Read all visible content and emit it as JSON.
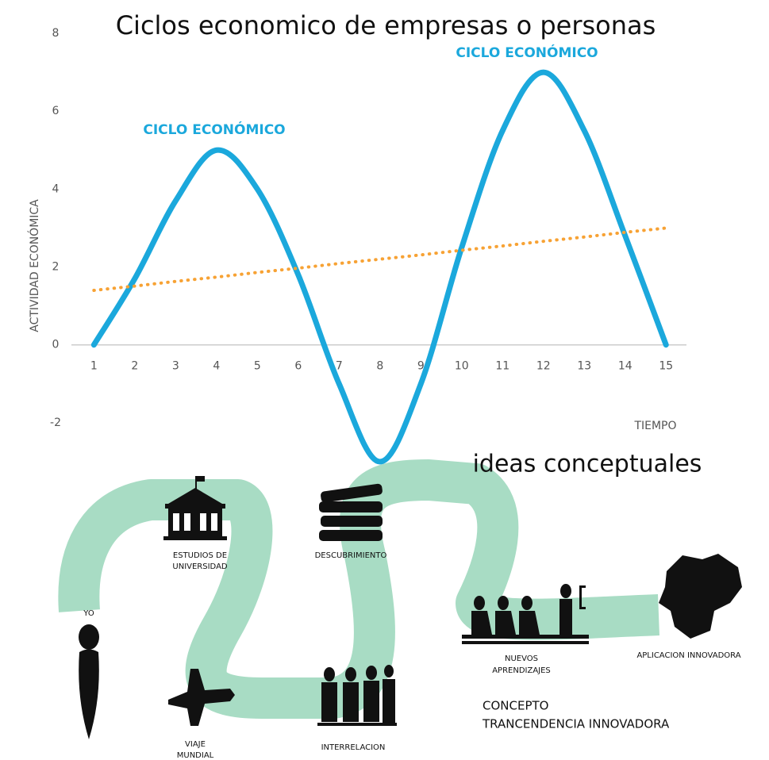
{
  "chart_data": {
    "type": "line",
    "title": "Ciclos economico de empresas o personas",
    "y_label": "ACTIVIDAD ECONÓMICA",
    "x_label": "TIEMPO",
    "annotations": [
      "CICLO ECONÓMICO",
      "CICLO ECONÓMICO"
    ],
    "x": [
      1,
      2,
      3,
      4,
      5,
      6,
      7,
      8,
      9,
      10,
      11,
      12,
      13,
      14,
      15
    ],
    "series": [
      {
        "color": "#1ba8dc",
        "values": [
          0,
          1.7,
          3.7,
          5,
          4,
          1.8,
          -1,
          -3,
          -1,
          2.5,
          5.5,
          7,
          5.5,
          2.8,
          0
        ]
      },
      {
        "color": "#f7a234",
        "values": [
          1.4,
          1.51,
          1.63,
          1.74,
          1.86,
          1.97,
          2.09,
          2.2,
          2.31,
          2.43,
          2.54,
          2.66,
          2.77,
          2.89,
          3.0
        ]
      }
    ],
    "xlim": [
      0.45,
      15.5
    ],
    "ylim": [
      -3,
      8
    ],
    "xticks": [
      1,
      2,
      3,
      4,
      5,
      6,
      7,
      8,
      9,
      10,
      11,
      12,
      13,
      14,
      15
    ],
    "yticks": [
      -2,
      0,
      2,
      4,
      6,
      8
    ]
  },
  "infographic": {
    "title": "ideas conceptuales",
    "nodes": [
      {
        "lines": [
          "ESTUDIOS DE",
          "UNIVERSIDAD"
        ]
      },
      {
        "lines": [
          "DESCUBRIMIENTO"
        ]
      },
      {
        "lines": [
          "YO"
        ]
      },
      {
        "lines": [
          "VIAJE",
          "MUNDIAL"
        ]
      },
      {
        "lines": [
          "INTERRELACION"
        ]
      },
      {
        "lines": [
          "NUEVOS",
          "APRENDIZAJES"
        ]
      },
      {
        "lines": [
          "APLICACION INNOVADORA"
        ]
      },
      {
        "lines": [
          "CONCEPTO",
          "TRANCENDENCIA INNOVADORA"
        ]
      }
    ]
  }
}
